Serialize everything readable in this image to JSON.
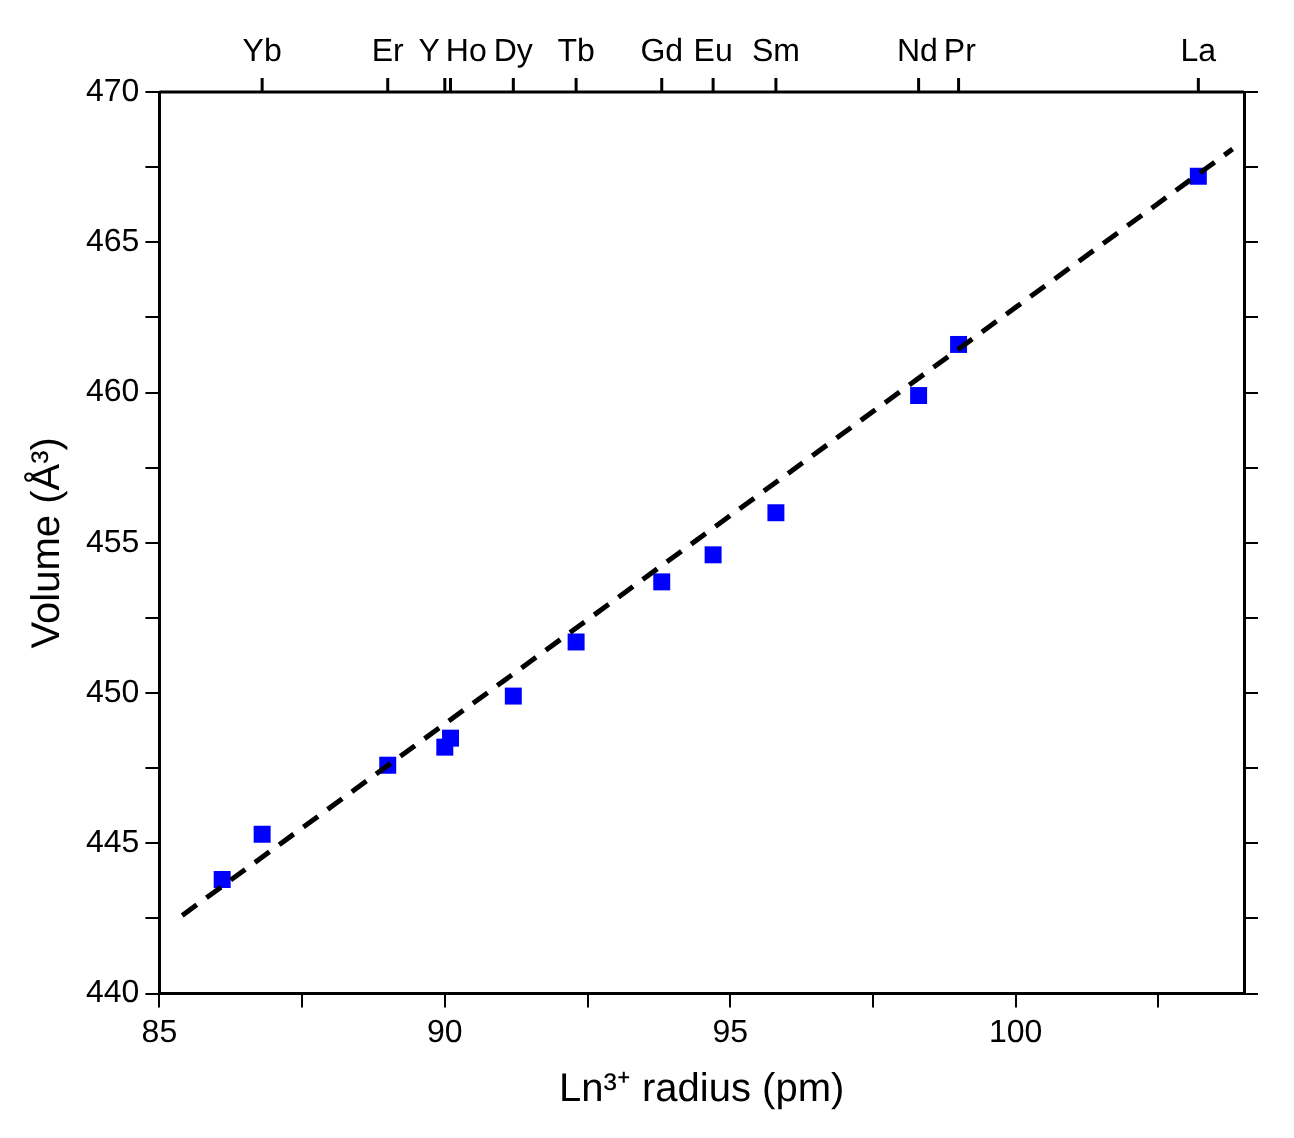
{
  "chart_data": {
    "type": "scatter",
    "xlabel": "Ln³⁺ radius (pm)",
    "ylabel": "Volume (Å³)",
    "x": [
      86.1,
      86.8,
      89,
      90,
      90.1,
      91.2,
      92.3,
      93.8,
      94.7,
      95.8,
      98.3,
      99,
      103.2
    ],
    "series": [
      {
        "color": "#0000ff",
        "marker": "square",
        "values": [
          443.8,
          445.3,
          447.6,
          448.2,
          448.5,
          449.9,
          451.7,
          453.7,
          454.6,
          456.0,
          459.9,
          461.6,
          467.2
        ]
      },
      {
        "type": "line",
        "color": "#000000",
        "marker": "none",
        "line_style": "dashed",
        "x": [
          85.4,
          103.8
        ],
        "values": [
          442.6,
          468.1
        ]
      }
    ],
    "xlim": [
      85,
      104
    ],
    "xticks": [
      85,
      {
        "value": 87.5,
        "label": null
      },
      90,
      {
        "value": 92.5,
        "label": null
      },
      95,
      {
        "value": 97.5,
        "label": null
      },
      100,
      {
        "value": 102.5,
        "label": null
      }
    ],
    "ylim": [
      440,
      470
    ],
    "yticks": [
      440,
      {
        "value": 442.5,
        "label": null
      },
      445,
      {
        "value": 447.5,
        "label": null
      },
      450,
      {
        "value": 452.5,
        "label": null
      },
      455,
      {
        "value": 457.5,
        "label": null
      },
      460,
      {
        "value": 462.5,
        "label": null
      },
      465,
      {
        "value": 467.5,
        "label": null
      },
      470
    ],
    "annotations": [
      {
        "text": "Yb",
        "x": 86.8
      },
      {
        "text": "Er",
        "x": 89
      },
      {
        "text": "Y",
        "x": 90
      },
      {
        "text": "Ho",
        "x": 90.1
      },
      {
        "text": "Dy",
        "x": 91.2
      },
      {
        "text": "Tb",
        "x": 92.3
      },
      {
        "text": "Gd",
        "x": 93.8
      },
      {
        "text": "Eu",
        "x": 94.7
      },
      {
        "text": "Sm",
        "x": 95.8
      },
      {
        "text": "Nd",
        "x": 98.3
      },
      {
        "text": "Pr",
        "x": 99
      },
      {
        "text": "La",
        "x": 103.2
      }
    ],
    "grid": false,
    "legend": false
  }
}
